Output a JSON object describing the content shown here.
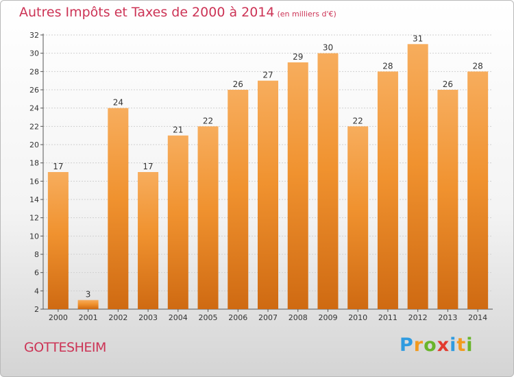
{
  "chart_data": {
    "type": "bar",
    "title": "Autres Impôts et Taxes de 2000 à 2014",
    "subtitle": "(en milliers d'€)",
    "xlabel": "",
    "ylabel": "",
    "categories": [
      "2000",
      "2001",
      "2002",
      "2003",
      "2004",
      "2005",
      "2006",
      "2007",
      "2008",
      "2009",
      "2010",
      "2011",
      "2012",
      "2013",
      "2014"
    ],
    "values": [
      17,
      3,
      24,
      17,
      21,
      22,
      26,
      27,
      29,
      30,
      22,
      28,
      31,
      26,
      28
    ],
    "ylim": [
      2,
      32
    ],
    "yticks": [
      2,
      4,
      6,
      8,
      10,
      12,
      14,
      16,
      18,
      20,
      22,
      24,
      26,
      28,
      30,
      32
    ],
    "grid": true,
    "bar_color": "#f0922f",
    "bar_color_light": "#f7ad5d",
    "bar_color_dark": "#cf6a12"
  },
  "footer": {
    "commune": "GOTTESHEIM",
    "brand_letters": [
      "P",
      "r",
      "o",
      "x",
      "i",
      "t",
      "i"
    ]
  }
}
